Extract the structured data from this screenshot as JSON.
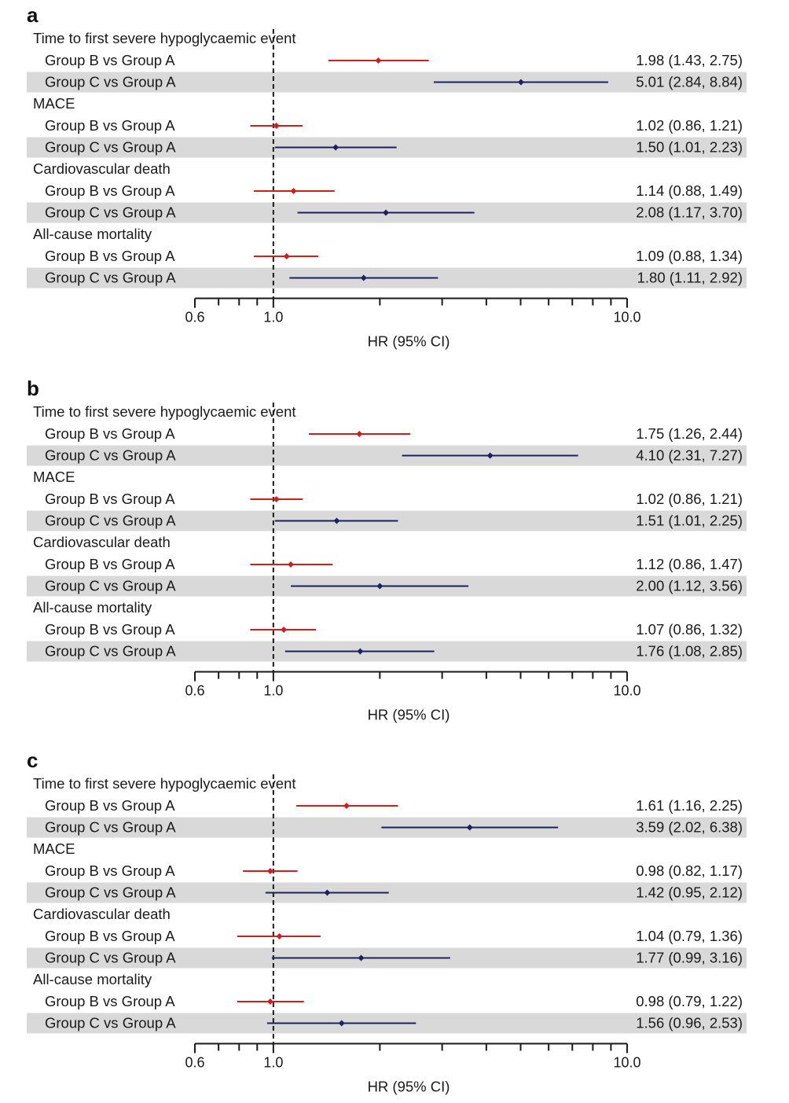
{
  "colors": {
    "group_b": "#cc1f1f",
    "group_c": "#1c2160",
    "row_shade": "#d9d9d9",
    "reference_line": "#1a1a1a"
  },
  "chart_data": [
    {
      "type": "forest",
      "panel_label": "a",
      "xlabel": "HR (95% CI)",
      "x_scale": "log",
      "xlim": [
        0.6,
        10.0
      ],
      "tick_labels": [
        "0.6",
        "1.0",
        "10.0"
      ],
      "reference_line": 1.0,
      "groups": [
        {
          "title": "Time to first severe hypoglycaemic event",
          "rows": [
            {
              "label": "Group B vs Group A",
              "hr": 1.98,
              "lo": 1.43,
              "hi": 2.75,
              "text": "1.98 (1.43, 2.75)",
              "series": "group_b"
            },
            {
              "label": "Group C vs Group A",
              "hr": 5.01,
              "lo": 2.84,
              "hi": 8.84,
              "text": "5.01 (2.84, 8.84)",
              "series": "group_c"
            }
          ]
        },
        {
          "title": "MACE",
          "rows": [
            {
              "label": "Group B vs Group A",
              "hr": 1.02,
              "lo": 0.86,
              "hi": 1.21,
              "text": "1.02 (0.86, 1.21)",
              "series": "group_b"
            },
            {
              "label": "Group C vs Group A",
              "hr": 1.5,
              "lo": 1.01,
              "hi": 2.23,
              "text": "1.50 (1.01, 2.23)",
              "series": "group_c"
            }
          ]
        },
        {
          "title": "Cardiovascular death",
          "rows": [
            {
              "label": "Group B vs Group A",
              "hr": 1.14,
              "lo": 0.88,
              "hi": 1.49,
              "text": "1.14 (0.88, 1.49)",
              "series": "group_b"
            },
            {
              "label": "Group C vs Group A",
              "hr": 2.08,
              "lo": 1.17,
              "hi": 3.7,
              "text": "2.08 (1.17, 3.70)",
              "series": "group_c"
            }
          ]
        },
        {
          "title": "All-cause mortality",
          "rows": [
            {
              "label": "Group B vs Group A",
              "hr": 1.09,
              "lo": 0.88,
              "hi": 1.34,
              "text": "1.09 (0.88, 1.34)",
              "series": "group_b"
            },
            {
              "label": "Group C vs Group A",
              "hr": 1.8,
              "lo": 1.11,
              "hi": 2.92,
              "text": "1.80 (1.11, 2.92)",
              "series": "group_c"
            }
          ]
        }
      ]
    },
    {
      "type": "forest",
      "panel_label": "b",
      "xlabel": "HR (95% CI)",
      "x_scale": "log",
      "xlim": [
        0.6,
        10.0
      ],
      "tick_labels": [
        "0.6",
        "1.0",
        "10.0"
      ],
      "reference_line": 1.0,
      "groups": [
        {
          "title": "Time to first severe hypoglycaemic event",
          "rows": [
            {
              "label": "Group B vs Group A",
              "hr": 1.75,
              "lo": 1.26,
              "hi": 2.44,
              "text": "1.75 (1.26, 2.44)",
              "series": "group_b"
            },
            {
              "label": "Group C vs Group A",
              "hr": 4.1,
              "lo": 2.31,
              "hi": 7.27,
              "text": "4.10 (2.31, 7.27)",
              "series": "group_c"
            }
          ]
        },
        {
          "title": "MACE",
          "rows": [
            {
              "label": "Group B vs Group A",
              "hr": 1.02,
              "lo": 0.86,
              "hi": 1.21,
              "text": "1.02 (0.86, 1.21)",
              "series": "group_b"
            },
            {
              "label": "Group C vs Group A",
              "hr": 1.51,
              "lo": 1.01,
              "hi": 2.25,
              "text": "1.51 (1.01, 2.25)",
              "series": "group_c"
            }
          ]
        },
        {
          "title": "Cardiovascular death",
          "rows": [
            {
              "label": "Group B vs Group A",
              "hr": 1.12,
              "lo": 0.86,
              "hi": 1.47,
              "text": "1.12 (0.86, 1.47)",
              "series": "group_b"
            },
            {
              "label": "Group C vs Group A",
              "hr": 2.0,
              "lo": 1.12,
              "hi": 3.56,
              "text": "2.00 (1.12, 3.56)",
              "series": "group_c"
            }
          ]
        },
        {
          "title": "All-cause mortality",
          "rows": [
            {
              "label": "Group B vs Group A",
              "hr": 1.07,
              "lo": 0.86,
              "hi": 1.32,
              "text": "1.07 (0.86, 1.32)",
              "series": "group_b"
            },
            {
              "label": "Group C vs Group A",
              "hr": 1.76,
              "lo": 1.08,
              "hi": 2.85,
              "text": "1.76 (1.08, 2.85)",
              "series": "group_c"
            }
          ]
        }
      ]
    },
    {
      "type": "forest",
      "panel_label": "c",
      "xlabel": "HR (95% CI)",
      "x_scale": "log",
      "xlim": [
        0.6,
        10.0
      ],
      "tick_labels": [
        "0.6",
        "1.0",
        "10.0"
      ],
      "reference_line": 1.0,
      "groups": [
        {
          "title": "Time to first severe hypoglycaemic event",
          "rows": [
            {
              "label": "Group B vs Group A",
              "hr": 1.61,
              "lo": 1.16,
              "hi": 2.25,
              "text": "1.61 (1.16, 2.25)",
              "series": "group_b"
            },
            {
              "label": "Group C vs Group A",
              "hr": 3.59,
              "lo": 2.02,
              "hi": 6.38,
              "text": "3.59 (2.02, 6.38)",
              "series": "group_c"
            }
          ]
        },
        {
          "title": "MACE",
          "rows": [
            {
              "label": "Group B vs Group A",
              "hr": 0.98,
              "lo": 0.82,
              "hi": 1.17,
              "text": "0.98 (0.82, 1.17)",
              "series": "group_b"
            },
            {
              "label": "Group C vs Group A",
              "hr": 1.42,
              "lo": 0.95,
              "hi": 2.12,
              "text": "1.42 (0.95, 2.12)",
              "series": "group_c"
            }
          ]
        },
        {
          "title": "Cardiovascular death",
          "rows": [
            {
              "label": "Group B vs Group A",
              "hr": 1.04,
              "lo": 0.79,
              "hi": 1.36,
              "text": "1.04 (0.79, 1.36)",
              "series": "group_b"
            },
            {
              "label": "Group C vs Group A",
              "hr": 1.77,
              "lo": 0.99,
              "hi": 3.16,
              "text": "1.77 (0.99, 3.16)",
              "series": "group_c"
            }
          ]
        },
        {
          "title": "All-cause mortality",
          "rows": [
            {
              "label": "Group B vs Group A",
              "hr": 0.98,
              "lo": 0.79,
              "hi": 1.22,
              "text": "0.98 (0.79, 1.22)",
              "series": "group_b"
            },
            {
              "label": "Group C vs Group A",
              "hr": 1.56,
              "lo": 0.96,
              "hi": 2.53,
              "text": "1.56 (0.96, 2.53)",
              "series": "group_c"
            }
          ]
        }
      ]
    }
  ]
}
